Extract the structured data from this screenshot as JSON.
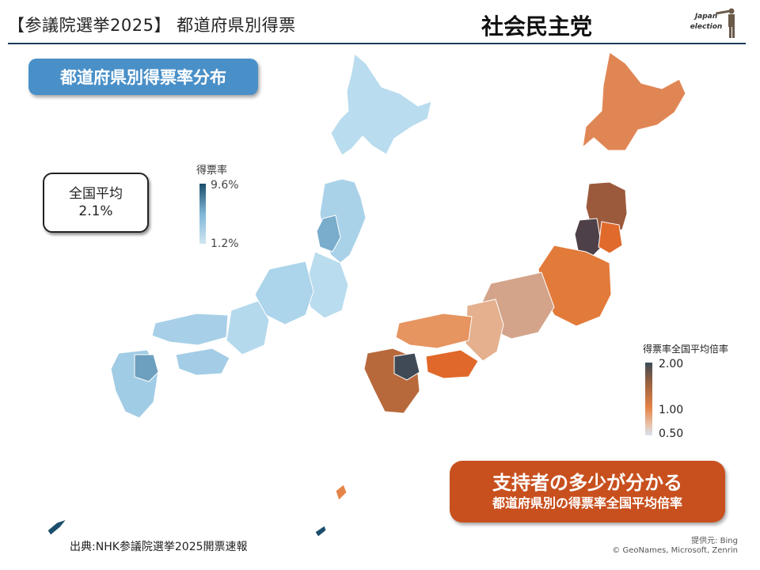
{
  "header": {
    "title": "【参議院選挙2025】 都道府県別得票",
    "party": "社会民主党",
    "logo_line1": "Japan",
    "logo_line2": "election"
  },
  "left_panel": {
    "badge": "都道府県別得票率分布",
    "average_label": "全国平均",
    "average_value": "2.1%",
    "legend_title": "得票率",
    "legend_max": "9.6%",
    "legend_min": "1.2%"
  },
  "right_panel": {
    "legend_title": "得票率全国平均倍率",
    "legend_max": "2.00",
    "legend_mid": "1.00",
    "legend_min": "0.50",
    "callout_line1": "支持者の多少が分かる",
    "callout_line2": "都道府県別の得票率全国平均倍率"
  },
  "footer": {
    "source": "出典:NHK参議院選挙2025開票速報",
    "provider": "提供元: Bing",
    "copyright": "© GeoNames, Microsoft, Zenrin"
  },
  "colors": {
    "accent_blue": "#4a90c8",
    "accent_orange": "#c8501e",
    "map_blue_light": "#b9dcee",
    "map_blue_dark": "#1b4e6b",
    "map_orange": "#e58447",
    "map_dark": "#3d4a55",
    "map_pale": "#e7c2a8"
  }
}
